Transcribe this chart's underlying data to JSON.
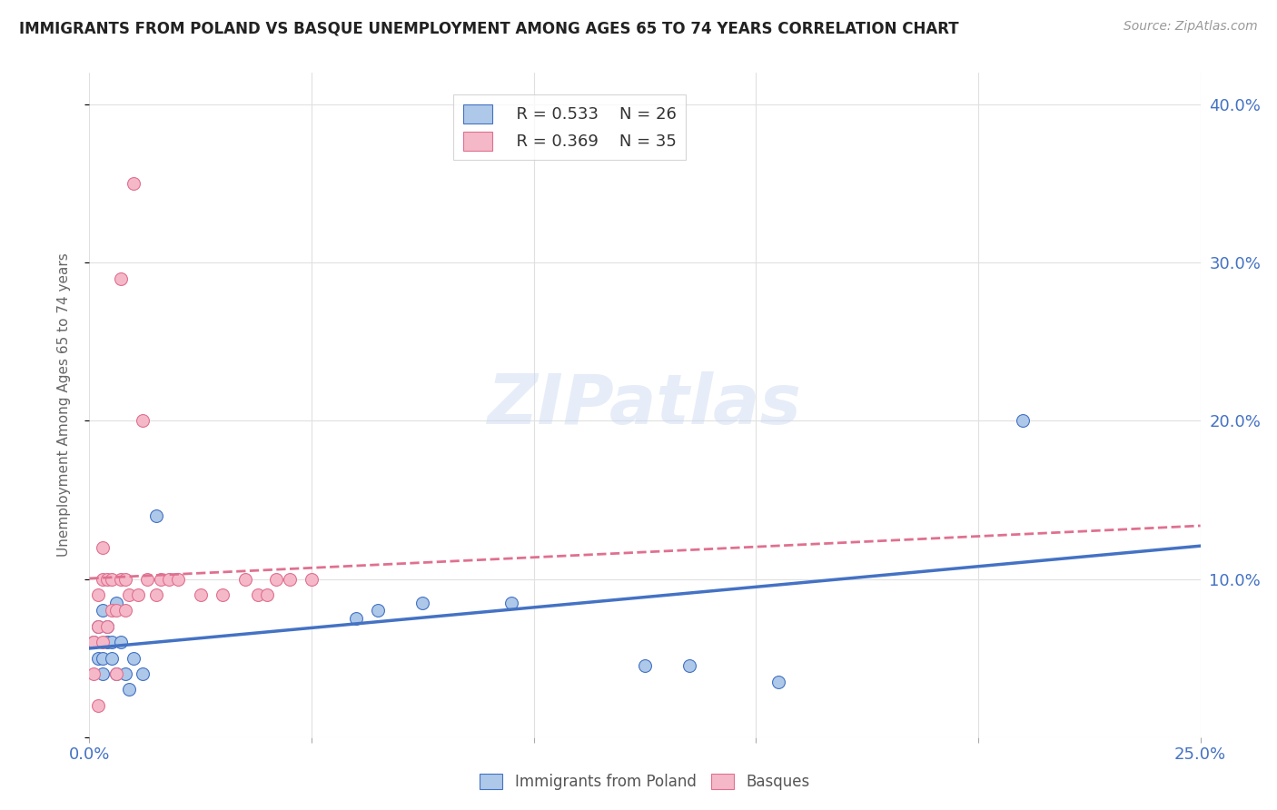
{
  "title": "IMMIGRANTS FROM POLAND VS BASQUE UNEMPLOYMENT AMONG AGES 65 TO 74 YEARS CORRELATION CHART",
  "source": "Source: ZipAtlas.com",
  "ylabel": "Unemployment Among Ages 65 to 74 years",
  "xlim": [
    0.0,
    0.25
  ],
  "ylim": [
    0.0,
    0.42
  ],
  "xticks": [
    0.0,
    0.05,
    0.1,
    0.15,
    0.2,
    0.25
  ],
  "yticks": [
    0.0,
    0.1,
    0.2,
    0.3,
    0.4
  ],
  "background_color": "#ffffff",
  "grid_color": "#e0e0e0",
  "watermark": "ZIPatlas",
  "legend_R1": "R = 0.533",
  "legend_N1": "N = 26",
  "legend_R2": "R = 0.369",
  "legend_N2": "N = 35",
  "color_blue": "#adc8e8",
  "color_pink": "#f5b8c8",
  "line_blue": "#4472c4",
  "line_pink": "#e07090",
  "tick_color": "#4472c4",
  "poland_x": [
    0.001,
    0.002,
    0.002,
    0.003,
    0.003,
    0.003,
    0.004,
    0.004,
    0.005,
    0.005,
    0.006,
    0.006,
    0.007,
    0.008,
    0.009,
    0.01,
    0.012,
    0.015,
    0.06,
    0.065,
    0.075,
    0.095,
    0.125,
    0.135,
    0.155,
    0.21
  ],
  "poland_y": [
    0.06,
    0.05,
    0.07,
    0.04,
    0.05,
    0.08,
    0.06,
    0.07,
    0.05,
    0.06,
    0.04,
    0.085,
    0.06,
    0.04,
    0.03,
    0.05,
    0.04,
    0.14,
    0.075,
    0.08,
    0.085,
    0.085,
    0.045,
    0.045,
    0.035,
    0.2
  ],
  "basque_x": [
    0.001,
    0.001,
    0.002,
    0.002,
    0.002,
    0.003,
    0.003,
    0.003,
    0.004,
    0.004,
    0.005,
    0.005,
    0.006,
    0.006,
    0.007,
    0.007,
    0.008,
    0.008,
    0.009,
    0.01,
    0.011,
    0.012,
    0.013,
    0.015,
    0.016,
    0.018,
    0.02,
    0.025,
    0.03,
    0.035,
    0.038,
    0.04,
    0.042,
    0.045,
    0.05
  ],
  "basque_y": [
    0.06,
    0.04,
    0.07,
    0.09,
    0.02,
    0.06,
    0.1,
    0.12,
    0.07,
    0.1,
    0.08,
    0.1,
    0.04,
    0.08,
    0.29,
    0.1,
    0.08,
    0.1,
    0.09,
    0.35,
    0.09,
    0.2,
    0.1,
    0.09,
    0.1,
    0.1,
    0.1,
    0.09,
    0.09,
    0.1,
    0.09,
    0.09,
    0.1,
    0.1,
    0.1
  ]
}
